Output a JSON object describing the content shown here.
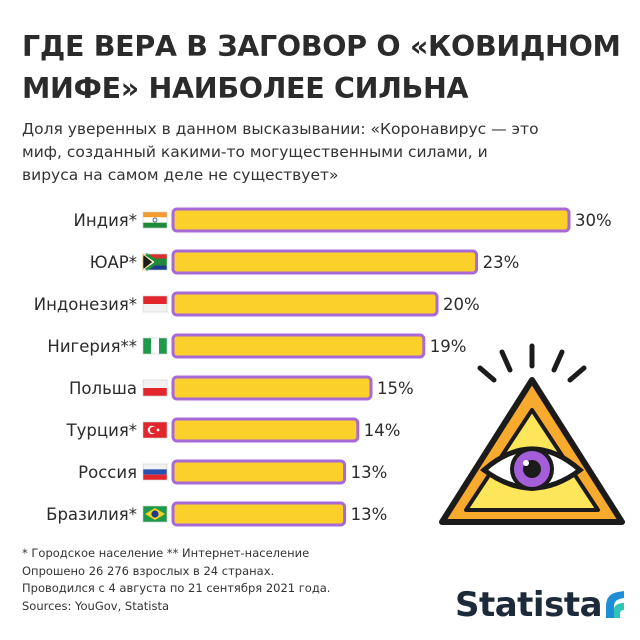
{
  "title_line1": "ГДЕ ВЕРА В ЗАГОВОР О «КОВИДНОМ",
  "title_line2": "МИФЕ» НАИБОЛЕЕ СИЛЬНА",
  "subtitle_line1": "Доля уверенных в данном высказывании: «Коронавирус — это",
  "subtitle_line2": "миф, созданный какими-то могущественными силами, и",
  "subtitle_line3": "вируса на самом деле не существует»",
  "footer": {
    "note1": "* Городское население    ** Интернет-население",
    "note2": "Опрошено 26 276 взрослых в 24 странах.",
    "note3": "Проводился с 4 августа по 21 сентября 2021 года.",
    "sources": "Sources: YouGov, Statista"
  },
  "brand": {
    "name": "Statista"
  },
  "colors": {
    "bar_fill": "#fcd02a",
    "bar_border": "#a769d8",
    "text": "#2b2b2b"
  },
  "icons": [
    "india-flag-icon",
    "south-africa-flag-icon",
    "indonesia-flag-icon",
    "nigeria-flag-icon",
    "poland-flag-icon",
    "turkey-flag-icon",
    "russia-flag-icon",
    "brazil-flag-icon",
    "all-seeing-eye-icon",
    "statista-logo-icon"
  ],
  "chart_data": {
    "type": "bar",
    "orientation": "horizontal",
    "categories": [
      "Индия*",
      "ЮАР*",
      "Индонезия*",
      "Нигерия**",
      "Польша",
      "Турция*",
      "Россия",
      "Бразилия*"
    ],
    "values": [
      30,
      23,
      20,
      19,
      15,
      14,
      13,
      13
    ],
    "value_labels": [
      "30%",
      "23%",
      "20%",
      "19%",
      "15%",
      "14%",
      "13%",
      "13%"
    ],
    "unit": "%",
    "title": "ГДЕ ВЕРА В ЗАГОВОР О «КОВИДНОМ МИФЕ» НАИБОЛЕЕ СИЛЬНА",
    "xlim": [
      0,
      30
    ],
    "grid": false,
    "legend": "none"
  }
}
